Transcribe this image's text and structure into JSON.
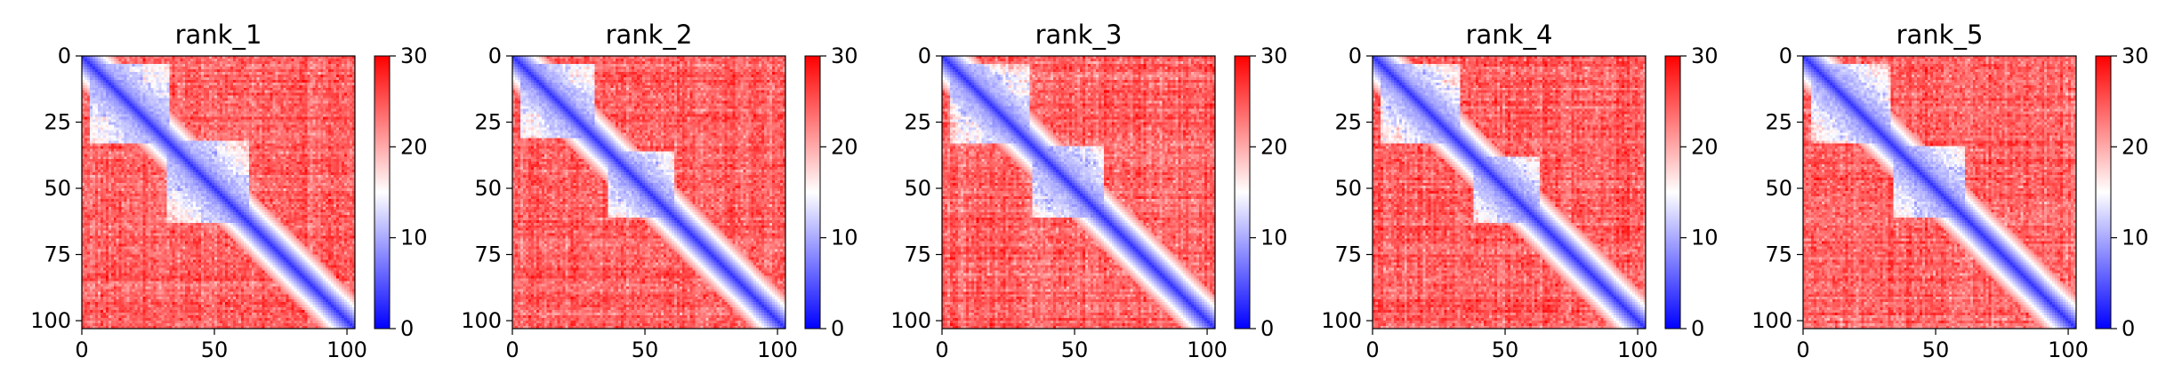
{
  "chart_data": [
    {
      "type": "heatmap",
      "title": "rank_1",
      "xlim": [
        0,
        103
      ],
      "ylim": [
        103,
        0
      ],
      "xticks": [
        0,
        50,
        100
      ],
      "yticks": [
        0,
        25,
        50,
        75,
        100
      ],
      "colorbar": {
        "min": 0,
        "max": 30,
        "ticks": [
          0,
          10,
          20,
          30
        ],
        "colormap": "bwr"
      },
      "n_residues": 103,
      "off_diagonal_blue_blocks": [
        {
          "x": [
            3,
            32
          ],
          "y": [
            3,
            32
          ]
        },
        {
          "x": [
            32,
            62
          ],
          "y": [
            32,
            62
          ]
        }
      ],
      "grid": false
    },
    {
      "type": "heatmap",
      "title": "rank_2",
      "xlim": [
        0,
        103
      ],
      "ylim": [
        103,
        0
      ],
      "xticks": [
        0,
        50,
        100
      ],
      "yticks": [
        0,
        25,
        50,
        75,
        100
      ],
      "colorbar": {
        "min": 0,
        "max": 30,
        "ticks": [
          0,
          10,
          20,
          30
        ],
        "colormap": "bwr"
      },
      "n_residues": 103,
      "off_diagonal_blue_blocks": [
        {
          "x": [
            3,
            30
          ],
          "y": [
            3,
            30
          ]
        },
        {
          "x": [
            36,
            60
          ],
          "y": [
            36,
            60
          ]
        }
      ],
      "grid": false
    },
    {
      "type": "heatmap",
      "title": "rank_3",
      "xlim": [
        0,
        103
      ],
      "ylim": [
        103,
        0
      ],
      "xticks": [
        0,
        50,
        100
      ],
      "yticks": [
        0,
        25,
        50,
        75,
        100
      ],
      "colorbar": {
        "min": 0,
        "max": 30,
        "ticks": [
          0,
          10,
          20,
          30
        ],
        "colormap": "bwr"
      },
      "n_residues": 103,
      "off_diagonal_blue_blocks": [
        {
          "x": [
            3,
            32
          ],
          "y": [
            3,
            32
          ]
        },
        {
          "x": [
            34,
            60
          ],
          "y": [
            34,
            60
          ]
        }
      ],
      "grid": false
    },
    {
      "type": "heatmap",
      "title": "rank_4",
      "xlim": [
        0,
        103
      ],
      "ylim": [
        103,
        0
      ],
      "xticks": [
        0,
        50,
        100
      ],
      "yticks": [
        0,
        25,
        50,
        75,
        100
      ],
      "colorbar": {
        "min": 0,
        "max": 30,
        "ticks": [
          0,
          10,
          20,
          30
        ],
        "colormap": "bwr"
      },
      "n_residues": 103,
      "off_diagonal_blue_blocks": [
        {
          "x": [
            3,
            32
          ],
          "y": [
            3,
            32
          ]
        },
        {
          "x": [
            38,
            62
          ],
          "y": [
            38,
            62
          ]
        }
      ],
      "grid": false
    },
    {
      "type": "heatmap",
      "title": "rank_5",
      "xlim": [
        0,
        103
      ],
      "ylim": [
        103,
        0
      ],
      "xticks": [
        0,
        50,
        100
      ],
      "yticks": [
        0,
        25,
        50,
        75,
        100
      ],
      "colorbar": {
        "min": 0,
        "max": 30,
        "ticks": [
          0,
          10,
          20,
          30
        ],
        "colormap": "bwr"
      },
      "n_residues": 103,
      "off_diagonal_blue_blocks": [
        {
          "x": [
            3,
            32
          ],
          "y": [
            3,
            32
          ]
        },
        {
          "x": [
            34,
            60
          ],
          "y": [
            34,
            60
          ]
        }
      ],
      "grid": false
    }
  ]
}
